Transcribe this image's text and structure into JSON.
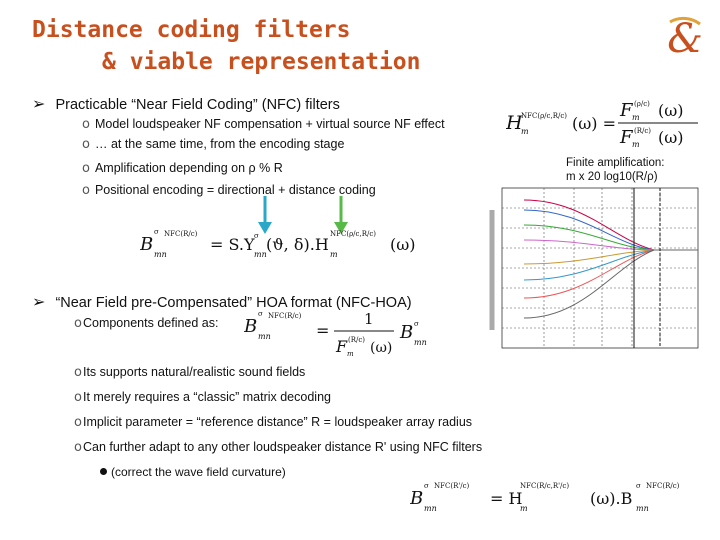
{
  "title": {
    "line1": "Distance coding filters",
    "line2": "& viable representation"
  },
  "logo": {
    "icon": "ampersand-logo-icon",
    "glyph": "&"
  },
  "bullet1": {
    "text": "Practicable “Near Field Coding” (NFC) filters",
    "subs": [
      "Model loudspeaker NF compensation + virtual source NF effect",
      "… at the same time, from the encoding stage",
      "Amplification depending on ρ % R",
      "Positional encoding = directional + distance coding"
    ]
  },
  "note": {
    "line1": "Finite amplification:",
    "line2": "m x 20 log10(R/ρ)"
  },
  "bullet2": {
    "text": "“Near Field pre-Compensated” HOA format (NFC-HOA)",
    "subs": [
      "Components defined as:",
      "Its supports natural/realistic sound fields",
      "It merely requires a “classic” matrix decoding",
      "Implicit parameter = “reference distance” R = loudspeaker array radius",
      "Can further adapt to any other loudspeaker distance R' using NFC filters"
    ],
    "subsub": "(correct the wave field curvature)"
  },
  "colors": {
    "title": "#c8501e",
    "arrow_blue": "#2aa7c9",
    "arrow_green": "#57b947"
  }
}
